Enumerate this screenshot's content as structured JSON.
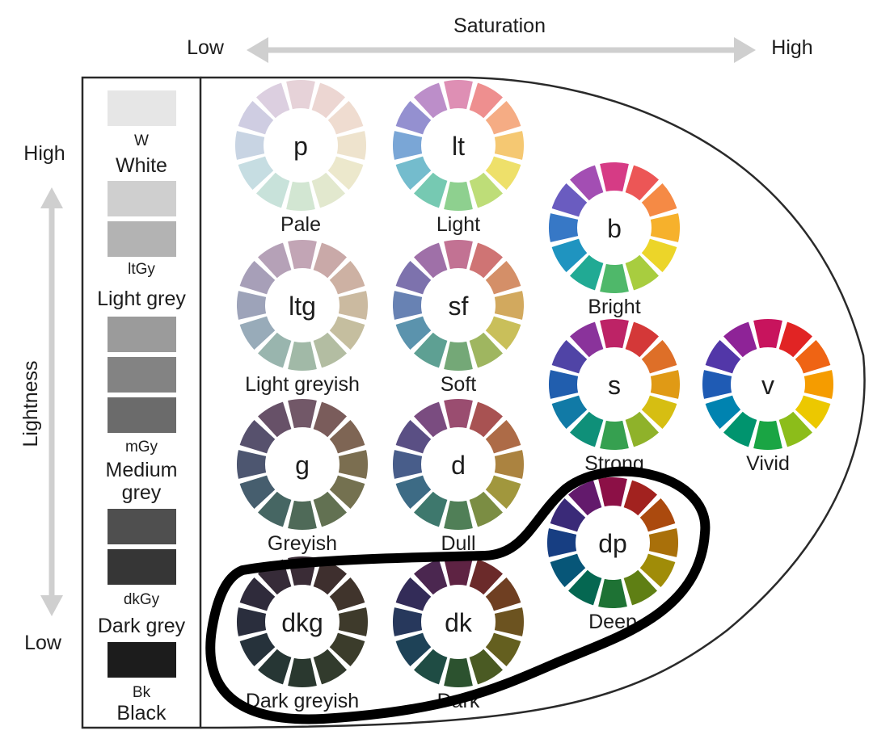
{
  "axes": {
    "saturation_label": "Saturation",
    "saturation_low": "Low",
    "saturation_high": "High",
    "lightness_label": "Lightness",
    "lightness_high": "High",
    "lightness_low": "Low"
  },
  "neutrals": [
    {
      "code": "W",
      "name": "White",
      "swatches": [
        "#e6e6e6"
      ]
    },
    {
      "code": "ltGy",
      "name": "Light grey",
      "swatches": [
        "#cfcfcf",
        "#b3b3b3"
      ]
    },
    {
      "code": "mGy",
      "name": "Medium grey",
      "name_line1": "Medium",
      "name_line2": "grey",
      "swatches": [
        "#9b9b9b",
        "#838383",
        "#6b6b6b"
      ]
    },
    {
      "code": "dkGy",
      "name": "Dark grey",
      "swatches": [
        "#4f4f4f",
        "#363636"
      ]
    },
    {
      "code": "Bk",
      "name": "Black",
      "swatches": [
        "#1c1c1c"
      ]
    }
  ],
  "tones": [
    {
      "code": "p",
      "name": "Pale",
      "colors": [
        "#e6d2d8",
        "#ecd6d2",
        "#efdcd0",
        "#eee3cd",
        "#ece8cc",
        "#e2e8ce",
        "#d2e6d2",
        "#c8e2da",
        "#c6dde2",
        "#c8d4e3",
        "#cfcde2",
        "#dccfe0"
      ]
    },
    {
      "code": "lt",
      "name": "Light",
      "colors": [
        "#de8fb4",
        "#ee8f8f",
        "#f5ac84",
        "#f5c872",
        "#eee06a",
        "#bedd78",
        "#8ed08f",
        "#76c9b2",
        "#74bccd",
        "#7aa6d6",
        "#9490d0",
        "#bc8ec9"
      ]
    },
    {
      "code": "b",
      "name": "Bright",
      "colors": [
        "#d63b85",
        "#ec5656",
        "#f58a45",
        "#f6b12c",
        "#ecd529",
        "#a8cd3f",
        "#4fb86a",
        "#21aa94",
        "#1f94c0",
        "#3778c6",
        "#6a5cc0",
        "#a34eb3"
      ]
    },
    {
      "code": "ltg",
      "name": "Light greyish",
      "colors": [
        "#c2a5b5",
        "#c9a9a8",
        "#cdb1a3",
        "#cbbaa0",
        "#c5be9f",
        "#b3bda2",
        "#a1b9a7",
        "#99b5ae",
        "#98abb9",
        "#9da3b9",
        "#a79fb8",
        "#b5a1b7"
      ]
    },
    {
      "code": "sf",
      "name": "Soft",
      "colors": [
        "#c27293",
        "#cf7474",
        "#d48f68",
        "#d2a95e",
        "#c9bf5a",
        "#9fb660",
        "#74a877",
        "#5ea093",
        "#5b93ad",
        "#6882b3",
        "#7d72ad",
        "#9f70a8"
      ]
    },
    {
      "code": "s",
      "name": "Strong",
      "colors": [
        "#bd2366",
        "#d43838",
        "#de6f28",
        "#e09a15",
        "#d6be12",
        "#8fb22a",
        "#36a050",
        "#0f9079",
        "#117aa6",
        "#215eae",
        "#5044a6",
        "#8a339b"
      ]
    },
    {
      "code": "v",
      "name": "Vivid",
      "colors": [
        "#c8145d",
        "#e12424",
        "#ef6414",
        "#f59c00",
        "#ecc800",
        "#8cbd1a",
        "#1aa544",
        "#00946e",
        "#0083b0",
        "#1f5bb4",
        "#5237a8",
        "#8e2397"
      ]
    },
    {
      "code": "g",
      "name": "Greyish",
      "colors": [
        "#725868",
        "#7a5c5b",
        "#7e6554",
        "#7b6e50",
        "#747150",
        "#627152",
        "#4f6a58",
        "#466663",
        "#465e6e",
        "#4d5670",
        "#57516d",
        "#675168"
      ]
    },
    {
      "code": "d",
      "name": "Dull",
      "colors": [
        "#9a4d70",
        "#a85252",
        "#ad6b47",
        "#ab8340",
        "#a1973d",
        "#7b8d43",
        "#507f57",
        "#3e786d",
        "#3d6b85",
        "#485d8a",
        "#5a4f84",
        "#7a4c80"
      ]
    },
    {
      "code": "dp",
      "name": "Deep",
      "colors": [
        "#8c1046",
        "#a2221f",
        "#ab4a0e",
        "#a9700a",
        "#a08c08",
        "#5f7f14",
        "#1e7234",
        "#056751",
        "#075678",
        "#173e82",
        "#3a2a78",
        "#631a6c"
      ]
    },
    {
      "code": "dkg",
      "name": "Dark greyish",
      "colors": [
        "#3a2c36",
        "#3e2f2e",
        "#40342c",
        "#3e3a2b",
        "#3b3c2b",
        "#323b2d",
        "#2a382f",
        "#263634",
        "#26323b",
        "#2a2e3d",
        "#2f2b3b",
        "#362b38"
      ]
    },
    {
      "code": "dk",
      "name": "Dark",
      "colors": [
        "#5e2343",
        "#6b2a2a",
        "#6f3f22",
        "#6c5320",
        "#645f1f",
        "#4a5a23",
        "#2c522f",
        "#1f4c44",
        "#1e4257",
        "#27385c",
        "#332c58",
        "#4b2750"
      ]
    }
  ]
}
